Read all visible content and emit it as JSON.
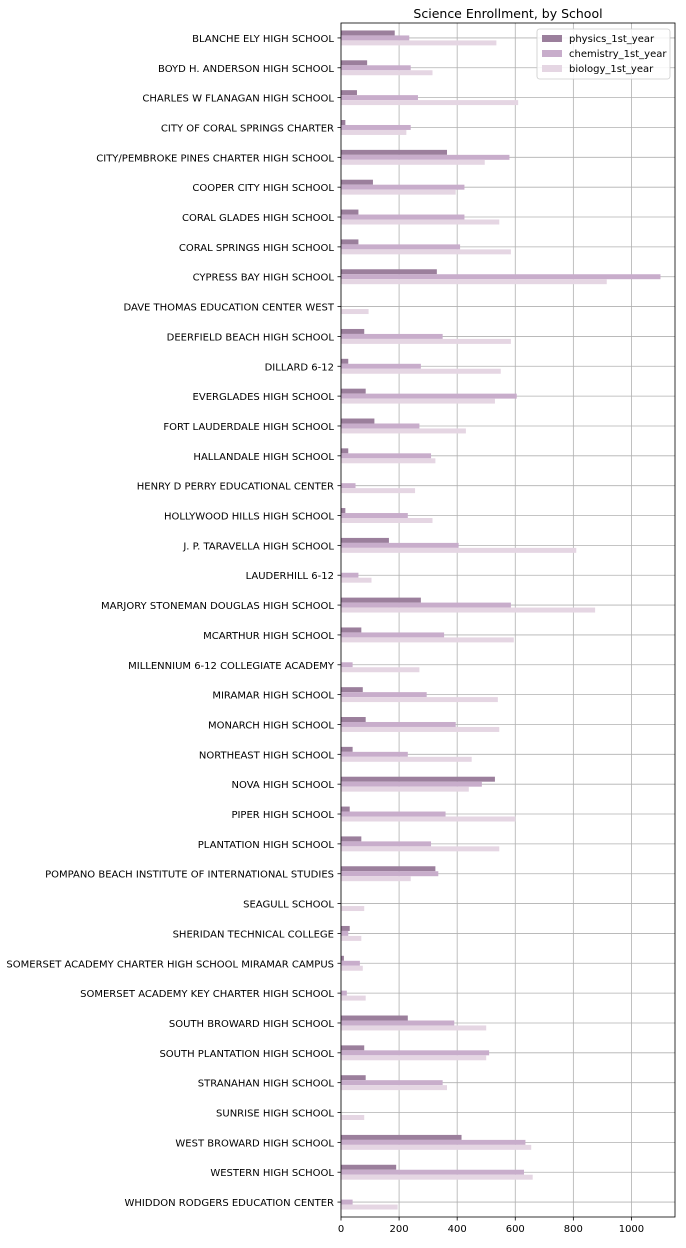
{
  "chart_data": {
    "type": "bar",
    "orientation": "horizontal",
    "title": "Science Enrollment, by School",
    "xlabel": "",
    "ylabel": "",
    "xlim": [
      0,
      1150
    ],
    "xticks": [
      0,
      200,
      400,
      600,
      800,
      1000
    ],
    "xtick_labels": [
      "0",
      "200",
      "400",
      "600",
      "800",
      "1000"
    ],
    "grid": true,
    "legend_position": "top-right",
    "categories": [
      "BLANCHE ELY HIGH SCHOOL",
      "BOYD H. ANDERSON HIGH SCHOOL",
      "CHARLES W FLANAGAN HIGH SCHOOL",
      "CITY OF CORAL SPRINGS CHARTER",
      "CITY/PEMBROKE PINES CHARTER HIGH SCHOOL",
      "COOPER CITY HIGH SCHOOL",
      "CORAL GLADES HIGH SCHOOL",
      "CORAL SPRINGS HIGH SCHOOL",
      "CYPRESS BAY HIGH SCHOOL",
      "DAVE THOMAS EDUCATION CENTER WEST",
      "DEERFIELD BEACH HIGH SCHOOL",
      "DILLARD  6-12",
      "EVERGLADES HIGH SCHOOL",
      "FORT LAUDERDALE HIGH SCHOOL",
      "HALLANDALE HIGH SCHOOL",
      "HENRY D PERRY EDUCATIONAL CENTER",
      "HOLLYWOOD HILLS HIGH SCHOOL",
      "J. P. TARAVELLA HIGH SCHOOL",
      "LAUDERHILL 6-12",
      "MARJORY STONEMAN DOUGLAS HIGH SCHOOL",
      "MCARTHUR HIGH SCHOOL",
      "MILLENNIUM 6-12 COLLEGIATE ACADEMY",
      "MIRAMAR HIGH SCHOOL",
      "MONARCH HIGH SCHOOL",
      "NORTHEAST HIGH SCHOOL",
      "NOVA HIGH SCHOOL",
      "PIPER HIGH SCHOOL",
      "PLANTATION HIGH SCHOOL",
      "POMPANO BEACH INSTITUTE OF INTERNATIONAL STUDIES",
      "SEAGULL SCHOOL",
      "SHERIDAN TECHNICAL COLLEGE",
      "SOMERSET ACADEMY CHARTER HIGH SCHOOL MIRAMAR CAMPUS",
      "SOMERSET ACADEMY KEY CHARTER HIGH SCHOOL",
      "SOUTH BROWARD HIGH SCHOOL",
      "SOUTH PLANTATION HIGH SCHOOL",
      "STRANAHAN HIGH SCHOOL",
      "SUNRISE HIGH SCHOOL",
      "WEST BROWARD HIGH SCHOOL",
      "WESTERN HIGH SCHOOL",
      "WHIDDON RODGERS EDUCATION CENTER"
    ],
    "series": [
      {
        "name": "physics_1st_year",
        "color": "#9b7f9c",
        "values": [
          185,
          90,
          55,
          15,
          365,
          110,
          60,
          60,
          330,
          0,
          80,
          25,
          85,
          115,
          25,
          0,
          15,
          165,
          0,
          275,
          70,
          0,
          75,
          85,
          40,
          530,
          30,
          70,
          325,
          0,
          30,
          10,
          0,
          230,
          80,
          85,
          0,
          415,
          190,
          0
        ]
      },
      {
        "name": "chemistry_1st_year",
        "color": "#c8adcb",
        "values": [
          235,
          240,
          265,
          240,
          580,
          425,
          425,
          410,
          1100,
          0,
          350,
          275,
          605,
          270,
          310,
          50,
          230,
          405,
          60,
          585,
          355,
          40,
          295,
          395,
          230,
          485,
          360,
          310,
          335,
          0,
          25,
          65,
          20,
          390,
          510,
          350,
          0,
          635,
          630,
          40
        ]
      },
      {
        "name": "biology_1st_year",
        "color": "#e5d6e3",
        "values": [
          535,
          315,
          610,
          225,
          495,
          395,
          545,
          585,
          915,
          95,
          585,
          550,
          530,
          430,
          325,
          255,
          315,
          810,
          105,
          875,
          595,
          270,
          540,
          545,
          450,
          440,
          600,
          545,
          240,
          80,
          70,
          75,
          85,
          500,
          500,
          365,
          80,
          655,
          660,
          195
        ]
      }
    ]
  }
}
